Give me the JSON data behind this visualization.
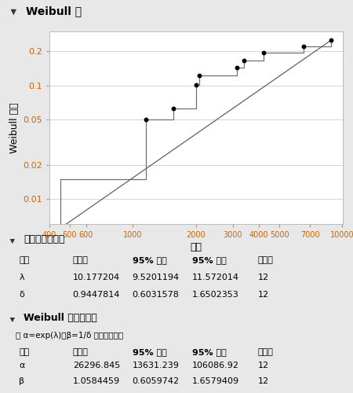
{
  "title": "Weibull 图",
  "xlabel": "时间",
  "ylabel": "Weibull 累积",
  "xlim": [
    400,
    10000
  ],
  "ylim": [
    0.006,
    0.3
  ],
  "x_ticks": [
    400,
    500,
    600,
    1000,
    2000,
    3000,
    4000,
    5000,
    7000,
    10000
  ],
  "x_tick_labels": [
    "400",
    "500",
    "600",
    "1000",
    "2000",
    "3000",
    "4000",
    "5000",
    "7000",
    "10000"
  ],
  "y_ticks": [
    0.01,
    0.02,
    0.05,
    0.1,
    0.2
  ],
  "y_tick_labels": [
    "0.01",
    "0.02",
    "0.05",
    "0.1",
    "0.2"
  ],
  "ecdf_x": [
    450,
    450,
    1150,
    1150,
    1560,
    1560,
    2000,
    2000,
    2080,
    2080,
    3150,
    3150,
    3400,
    3400,
    4200,
    4200,
    6500,
    6500,
    8800,
    8800
  ],
  "ecdf_y": [
    0.0055,
    0.015,
    0.015,
    0.05,
    0.05,
    0.063,
    0.063,
    0.102,
    0.102,
    0.122,
    0.122,
    0.143,
    0.143,
    0.166,
    0.166,
    0.196,
    0.196,
    0.222,
    0.222,
    0.25
  ],
  "fit_x": [
    450,
    8800
  ],
  "fit_y": [
    0.0055,
    0.25
  ],
  "data_points_x": [
    450,
    1150,
    1560,
    2000,
    2080,
    3150,
    3400,
    4200,
    6500,
    8800
  ],
  "data_points_y": [
    0.0055,
    0.05,
    0.063,
    0.102,
    0.122,
    0.143,
    0.166,
    0.196,
    0.222,
    0.25
  ],
  "bg_color": "#e8e8e8",
  "plot_bg": "#ffffff",
  "header_bg": "#d0d0d0",
  "grid_color": "#d0d0d0",
  "ecdf_color": "#707070",
  "fit_color": "#606060",
  "point_color": "#000000",
  "tick_color_y": "#cc6600",
  "tick_color_x": "#cc6600",
  "section1_title": "极値参数估计値",
  "section1_headers": [
    "参数",
    "估计値",
    "95% 下限",
    "95% 上限",
    "失效数"
  ],
  "section1_rows": [
    [
      "λ",
      "10.177204",
      "9.5201194",
      "11.572014",
      "12"
    ],
    [
      "δ",
      "0.9447814",
      "0.6031578",
      "1.6502353",
      "12"
    ]
  ],
  "section2_title": "Weibull 参数估计値",
  "section2_subtitle": "与 α=exp(λ)、β=1/δ 时的极値相同",
  "section2_headers": [
    "参数",
    "估计値",
    "95% 下限",
    "95% 上限",
    "失效数"
  ],
  "section2_rows": [
    [
      "α",
      "26296.845",
      "13631.239",
      "106086.92",
      "12"
    ],
    [
      "β",
      "1.0584459",
      "0.6059742",
      "1.6579409",
      "12"
    ]
  ]
}
